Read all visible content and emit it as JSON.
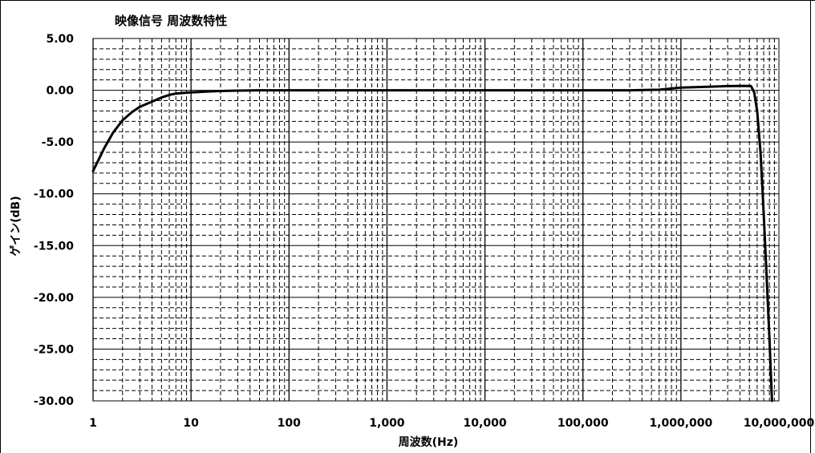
{
  "chart_data": {
    "type": "line",
    "title": "映像信号 周波数特性",
    "xlabel": "周波数(Hz)",
    "ylabel": "ゲイン(dB)",
    "x_scale": "log",
    "xlim": [
      1,
      10000000
    ],
    "ylim": [
      -30,
      5
    ],
    "x_tick_labels": [
      "1",
      "10",
      "100",
      "1,000",
      "10,000",
      "100,000",
      "1,000,000",
      "10,000,000"
    ],
    "y_tick_labels": [
      "5.00",
      "0.00",
      "-5.00",
      "-10.00",
      "-15.00",
      "-20.00",
      "-25.00",
      "-30.00"
    ],
    "grid": true,
    "legend": "none",
    "series": [
      {
        "x": [
          1,
          1.3,
          1.6,
          2,
          2.5,
          3,
          4,
          5,
          6,
          7,
          8,
          10,
          15,
          20,
          30,
          50,
          100,
          1000,
          10000,
          100000,
          300000,
          600000,
          1000000,
          2000000,
          3000000,
          4500000,
          5200000,
          5600000,
          6000000,
          6500000,
          7000000,
          7500000,
          8000000,
          8500000
        ],
        "y": [
          -7.8,
          -5.6,
          -4.1,
          -2.9,
          -2.1,
          -1.6,
          -1.1,
          -0.7,
          -0.45,
          -0.32,
          -0.27,
          -0.2,
          -0.12,
          -0.07,
          -0.03,
          0,
          0,
          0,
          0,
          0,
          0,
          0.05,
          0.25,
          0.35,
          0.4,
          0.42,
          0.4,
          -0.2,
          -2.0,
          -6.0,
          -12.0,
          -18.0,
          -24.0,
          -30.0
        ]
      }
    ]
  },
  "colors": {
    "line": "#000000",
    "grid": "#000000",
    "background": "#ffffff",
    "frame": "#000000"
  }
}
